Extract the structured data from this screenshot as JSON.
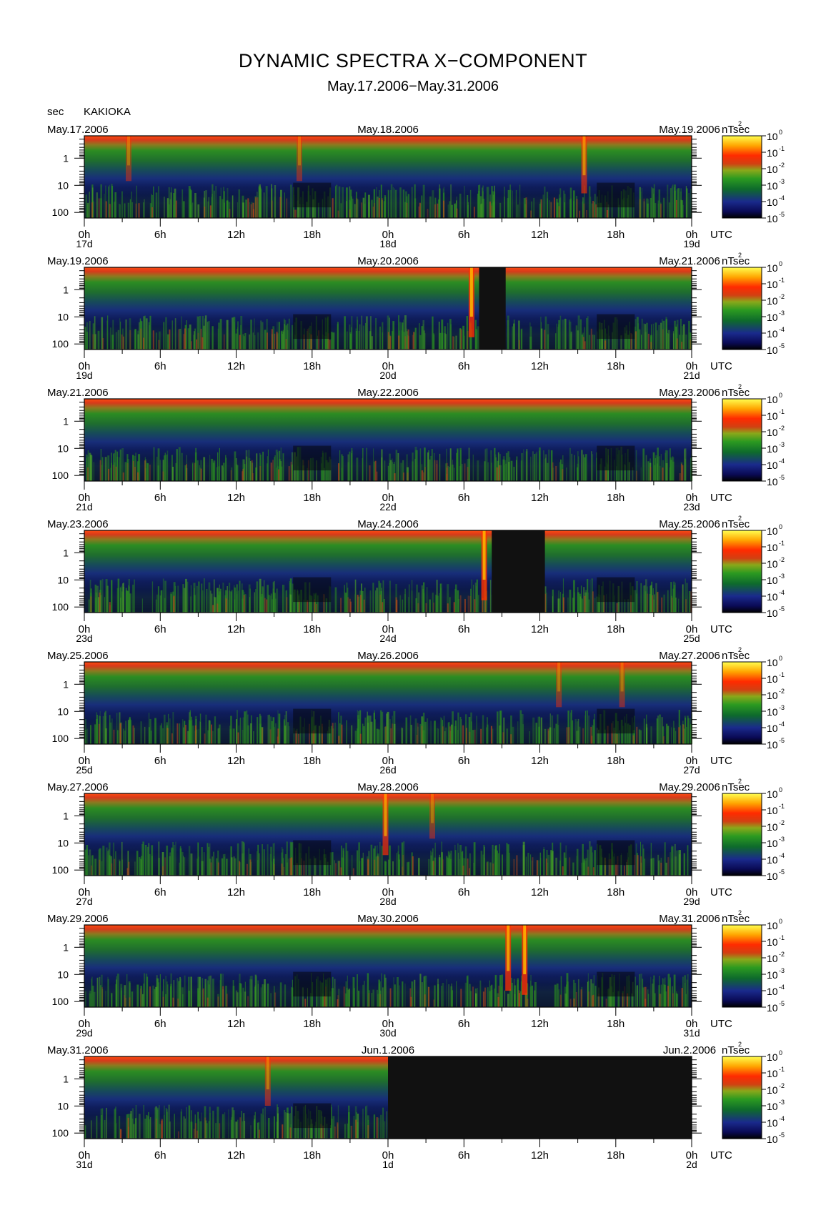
{
  "header": {
    "title": "DYNAMIC SPECTRA X−COMPONENT",
    "subtitle": "May.17.2006−May.31.2006",
    "y_unit": "sec",
    "station": "KAKIOKA"
  },
  "colorbar": {
    "unit": "nT²sec",
    "base": "10",
    "exponents": [
      "0",
      "-1",
      "-2",
      "-3",
      "-4",
      "-5"
    ],
    "colors": [
      "#000000",
      "#0b0b5e",
      "#1a2f8f",
      "#0f6b2a",
      "#2f9b1f",
      "#8fa81c",
      "#d84010",
      "#ff2a00",
      "#ffa800",
      "#ffff40"
    ]
  },
  "chart_data": {
    "type": "heatmap",
    "description_of_axes": "x: time UTC over 2 days per panel; y: period in seconds, log scale (smaller periods at top)",
    "x_tick_labels": [
      "0h",
      "6h",
      "12h",
      "18h",
      "0h",
      "6h",
      "12h",
      "18h",
      "0h"
    ],
    "x_unit_label": "UTC",
    "y_tick_labels": [
      "1",
      "10",
      "100"
    ],
    "y_range_sec": [
      0.15,
      160
    ],
    "panels": [
      {
        "left_date": "May.17.2006",
        "mid_date": "May.18.2006",
        "right_date": "May.19.2006",
        "day_left": "17d",
        "day_mid": "18d",
        "day_right": "19d",
        "gaps_hours": [],
        "bursts": [
          {
            "hour": 39.5,
            "strength": 0.7
          },
          {
            "hour": 3.5,
            "strength": 0.4
          },
          {
            "hour": 17.0,
            "strength": 0.4
          }
        ]
      },
      {
        "left_date": "May.19.2006",
        "mid_date": "May.20.2006",
        "right_date": "May.21.2006",
        "day_left": "19d",
        "day_mid": "20d",
        "day_right": "21d",
        "gaps_hours": [
          [
            31.2,
            33.3
          ]
        ],
        "bursts": [
          {
            "hour": 30.6,
            "strength": 1.0
          }
        ]
      },
      {
        "left_date": "May.21.2006",
        "mid_date": "May.22.2006",
        "right_date": "May.23.2006",
        "day_left": "21d",
        "day_mid": "22d",
        "day_right": "23d",
        "gaps_hours": [],
        "bursts": []
      },
      {
        "left_date": "May.23.2006",
        "mid_date": "May.24.2006",
        "right_date": "May.25.2006",
        "day_left": "23d",
        "day_mid": "24d",
        "day_right": "25d",
        "gaps_hours": [
          [
            32.2,
            36.4
          ]
        ],
        "bursts": [
          {
            "hour": 31.6,
            "strength": 1.0
          }
        ]
      },
      {
        "left_date": "May.25.2006",
        "mid_date": "May.26.2006",
        "right_date": "May.27.2006",
        "day_left": "25d",
        "day_mid": "26d",
        "day_right": "27d",
        "gaps_hours": [],
        "bursts": [
          {
            "hour": 37.5,
            "strength": 0.4
          },
          {
            "hour": 42.5,
            "strength": 0.4
          }
        ]
      },
      {
        "left_date": "May.27.2006",
        "mid_date": "May.28.2006",
        "right_date": "May.29.2006",
        "day_left": "27d",
        "day_mid": "28d",
        "day_right": "29d",
        "gaps_hours": [],
        "bursts": [
          {
            "hour": 23.8,
            "strength": 0.8
          },
          {
            "hour": 27.5,
            "strength": 0.4
          }
        ]
      },
      {
        "left_date": "May.29.2006",
        "mid_date": "May.30.2006",
        "right_date": "May.31.2006",
        "day_left": "29d",
        "day_mid": "30d",
        "day_right": "31d",
        "gaps_hours": [],
        "bursts": [
          {
            "hour": 33.5,
            "strength": 0.9
          },
          {
            "hour": 34.8,
            "strength": 1.0
          }
        ]
      },
      {
        "left_date": "May.31.2006",
        "mid_date": "Jun.1.2006",
        "right_date": "Jun.2.2006",
        "day_left": "31d",
        "day_mid": "1d",
        "day_right": "2d",
        "gaps_hours": [
          [
            24,
            48
          ]
        ],
        "bursts": [
          {
            "hour": 14.5,
            "strength": 0.5
          }
        ]
      }
    ]
  }
}
